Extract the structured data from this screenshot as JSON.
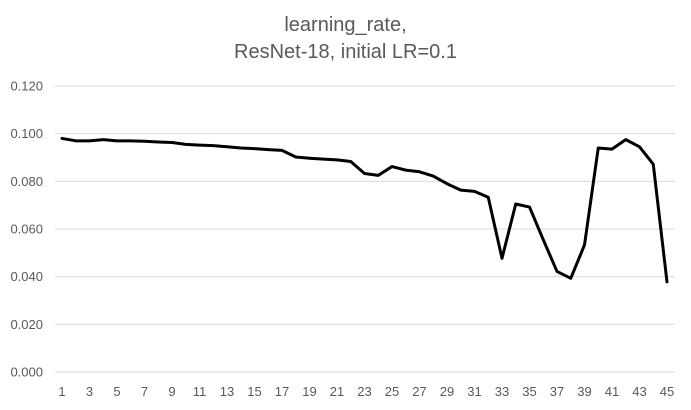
{
  "chart_data": {
    "type": "line",
    "title": [
      "learning_rate,",
      "ResNet-18, initial LR=0.1"
    ],
    "xlabel": "",
    "ylabel": "",
    "grid": true,
    "legend": "none",
    "ylim": [
      0,
      0.12
    ],
    "xlim": [
      1,
      45
    ],
    "yticks": [
      "0.000",
      "0.020",
      "0.040",
      "0.060",
      "0.080",
      "0.100",
      "0.120"
    ],
    "xticks": [
      "1",
      "3",
      "5",
      "7",
      "9",
      "11",
      "13",
      "15",
      "17",
      "19",
      "21",
      "23",
      "25",
      "27",
      "29",
      "31",
      "33",
      "35",
      "37",
      "39",
      "41",
      "43",
      "45"
    ],
    "series": [
      {
        "name": "",
        "color": "#000000",
        "x": [
          1,
          2,
          3,
          4,
          5,
          6,
          7,
          8,
          9,
          10,
          11,
          12,
          13,
          14,
          15,
          16,
          17,
          18,
          19,
          20,
          21,
          22,
          23,
          24,
          25,
          26,
          27,
          28,
          29,
          30,
          31,
          32,
          33,
          34,
          35,
          36,
          37,
          38,
          39,
          40,
          41,
          42,
          43,
          44,
          45
        ],
        "values": [
          0.098,
          0.097,
          0.097,
          0.0975,
          0.097,
          0.097,
          0.0968,
          0.0965,
          0.0963,
          0.0955,
          0.0952,
          0.095,
          0.0945,
          0.094,
          0.0937,
          0.0933,
          0.093,
          0.0902,
          0.0897,
          0.0893,
          0.089,
          0.0883,
          0.0833,
          0.0825,
          0.0862,
          0.0847,
          0.084,
          0.0822,
          0.079,
          0.0763,
          0.0758,
          0.0733,
          0.0477,
          0.0705,
          0.0692,
          0.0555,
          0.0422,
          0.0393,
          0.0533,
          0.094,
          0.0935,
          0.0975,
          0.0945,
          0.0872,
          0.0378
        ]
      }
    ]
  },
  "colors": {
    "gridline": "#d9d9d9",
    "axis_text": "#595959",
    "line": "#000000"
  }
}
